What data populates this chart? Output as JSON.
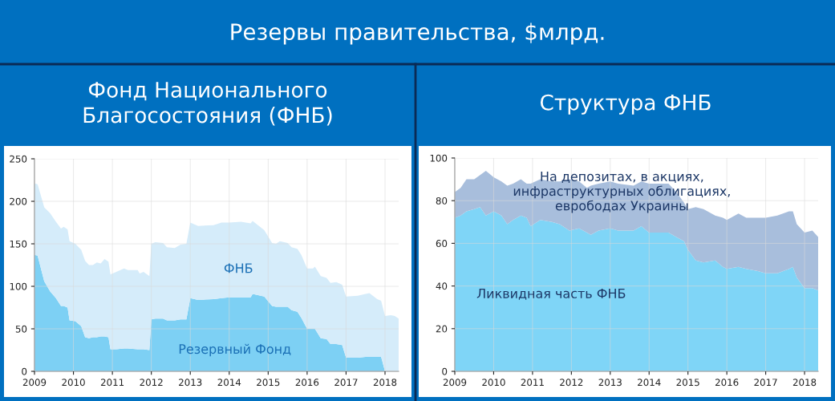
{
  "chart_data": [
    {
      "type": "area",
      "title": "Резервы правительства, $млрд.",
      "subtitle": "Фонд Национального\nБлагосостояния (ФНБ)",
      "stacked": true,
      "grid": true,
      "x": [
        2009.0,
        2009.08,
        2009.25,
        2009.4,
        2009.55,
        2009.68,
        2009.75,
        2009.85,
        2009.9,
        2010.05,
        2010.2,
        2010.3,
        2010.4,
        2010.5,
        2010.6,
        2010.7,
        2010.8,
        2010.9,
        2010.95,
        2011.1,
        2011.3,
        2011.4,
        2011.65,
        2011.7,
        2011.8,
        2011.95,
        2012.0,
        2012.1,
        2012.3,
        2012.4,
        2012.6,
        2012.75,
        2012.9,
        2013.0,
        2013.2,
        2013.6,
        2013.8,
        2014.0,
        2014.3,
        2014.55,
        2014.6,
        2014.9,
        2015.1,
        2015.2,
        2015.3,
        2015.5,
        2015.6,
        2015.75,
        2015.85,
        2016.0,
        2016.15,
        2016.2,
        2016.35,
        2016.5,
        2016.6,
        2016.75,
        2016.9,
        2017.0,
        2017.3,
        2017.5,
        2017.6,
        2017.8,
        2017.9,
        2018.0,
        2018.15,
        2018.25,
        2018.35
      ],
      "series": [
        {
          "name": "Резервный Фонд",
          "color": "#7dd0f4",
          "values": [
            137,
            136,
            106,
            94,
            86,
            77,
            77,
            75,
            60,
            59,
            53,
            40,
            39,
            40,
            40,
            41,
            41,
            40,
            26,
            26,
            27,
            27,
            26,
            26,
            26,
            25,
            61,
            62,
            62,
            60,
            60,
            61,
            61,
            86,
            84,
            85,
            86,
            87,
            87,
            87,
            91,
            88,
            77,
            76,
            76,
            76,
            72,
            70,
            63,
            50,
            50,
            50,
            39,
            38,
            32,
            32,
            31,
            16,
            16,
            17,
            17,
            17,
            17,
            0,
            0,
            0,
            0
          ]
        },
        {
          "name": "ФНБ",
          "color": "#d5ecfa",
          "values": [
            84,
            84,
            87,
            92,
            90,
            91,
            93,
            92,
            93,
            91,
            90,
            90,
            86,
            85,
            88,
            86,
            91,
            89,
            88,
            91,
            94,
            92,
            93,
            89,
            91,
            87,
            89,
            90,
            89,
            86,
            85,
            88,
            89,
            89,
            87,
            87,
            89,
            88,
            89,
            87,
            86,
            78,
            74,
            74,
            77,
            75,
            74,
            74,
            74,
            71,
            71,
            73,
            73,
            72,
            72,
            73,
            71,
            72,
            73,
            74,
            75,
            68,
            66,
            65,
            66,
            65,
            62
          ]
        }
      ],
      "xlim": [
        2009,
        2018.35
      ],
      "ylim": [
        0,
        250
      ],
      "xticks": [
        2009,
        2010,
        2011,
        2012,
        2013,
        2014,
        2015,
        2016,
        2017,
        2018
      ],
      "yticks": [
        0,
        50,
        100,
        150,
        200,
        250
      ]
    },
    {
      "type": "area",
      "title": "Структура ФНБ",
      "stacked": true,
      "grid": true,
      "x": [
        2009.0,
        2009.15,
        2009.3,
        2009.5,
        2009.65,
        2009.8,
        2010.0,
        2010.2,
        2010.35,
        2010.5,
        2010.7,
        2010.85,
        2010.95,
        2011.2,
        2011.5,
        2011.7,
        2011.95,
        2012.2,
        2012.4,
        2012.5,
        2012.7,
        2013.0,
        2013.2,
        2013.6,
        2013.8,
        2014.0,
        2014.5,
        2014.7,
        2014.9,
        2015.0,
        2015.2,
        2015.4,
        2015.7,
        2015.9,
        2016.0,
        2016.3,
        2016.5,
        2016.8,
        2017.0,
        2017.3,
        2017.6,
        2017.7,
        2017.8,
        2018.0,
        2018.2,
        2018.35
      ],
      "series": [
        {
          "name": "Ликвидная часть ФНБ",
          "color": "#7fd5f7",
          "values": [
            72,
            73,
            75,
            76,
            77,
            73,
            75,
            73,
            69,
            71,
            73,
            72,
            68,
            71,
            70,
            69,
            66,
            67,
            65,
            64,
            66,
            67,
            66,
            66,
            68,
            65,
            65,
            63,
            61,
            57,
            52,
            51,
            52,
            49,
            48,
            49,
            48,
            47,
            46,
            46,
            48,
            49,
            44,
            39,
            39,
            38
          ]
        },
        {
          "name": "На депозитах, в акциях,\nинфраструктурных облигациях,\nеврободах Украины",
          "color": "#a8bedc",
          "values": [
            12,
            13,
            15,
            14,
            15,
            21,
            16,
            16,
            18,
            17,
            17,
            16,
            20,
            19,
            19,
            20,
            24,
            22,
            21,
            23,
            22,
            22,
            22,
            21,
            21,
            23,
            23,
            21,
            18,
            19,
            25,
            25,
            21,
            23,
            23,
            25,
            24,
            25,
            26,
            27,
            27,
            26,
            25,
            26,
            27,
            25
          ]
        }
      ],
      "xlim": [
        2009,
        2018.35
      ],
      "ylim": [
        0,
        100
      ],
      "xticks": [
        2009,
        2010,
        2011,
        2012,
        2013,
        2014,
        2015,
        2016,
        2017,
        2018
      ],
      "yticks": [
        0,
        20,
        40,
        60,
        80,
        100
      ]
    }
  ]
}
